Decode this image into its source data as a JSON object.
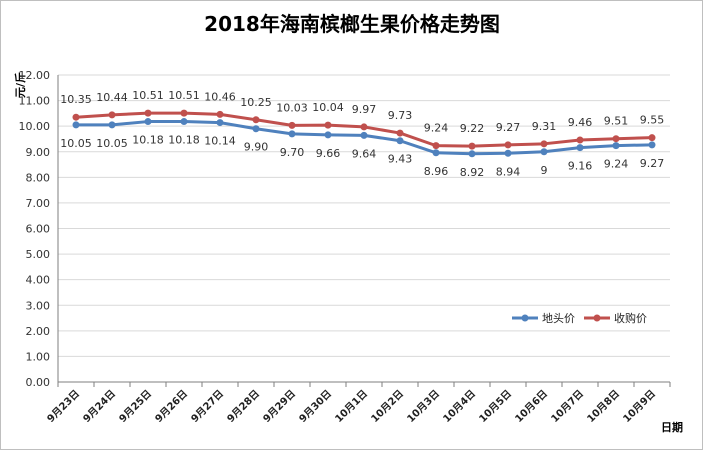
{
  "chart_data": {
    "type": "line",
    "title": "2018年海南槟榔生果价格走势图",
    "xlabel": "日期",
    "ylabel": "元/斤",
    "categories": [
      "9月23日",
      "9月24日",
      "9月25日",
      "9月26日",
      "9月27日",
      "9月28日",
      "9月29日",
      "9月30日",
      "10月1日",
      "10月2日",
      "10月3日",
      "10月4日",
      "10月5日",
      "10月6日",
      "10月7日",
      "10月8日",
      "10月9日"
    ],
    "ylim": [
      0,
      12
    ],
    "ytick_labels": [
      "0.00",
      "1.00",
      "2.00",
      "3.00",
      "4.00",
      "5.00",
      "6.00",
      "7.00",
      "8.00",
      "9.00",
      "10.00",
      "11.00",
      "12.00"
    ],
    "grid": "horizontal",
    "legend_position": "right-middle",
    "series": [
      {
        "name": "地头价",
        "color": "#4F81BD",
        "values": [
          10.05,
          10.05,
          10.18,
          10.18,
          10.14,
          9.9,
          9.7,
          9.66,
          9.64,
          9.43,
          8.96,
          8.92,
          8.94,
          9,
          9.16,
          9.24,
          9.27
        ],
        "labels": [
          "10.05",
          "10.05",
          "10.18",
          "10.18",
          "10.14",
          "9.90",
          "9.70",
          "9.66",
          "9.64",
          "9.43",
          "8.96",
          "8.92",
          "8.94",
          "9",
          "9.16",
          "9.24",
          "9.27"
        ]
      },
      {
        "name": "收购价",
        "color": "#C0504D",
        "values": [
          10.35,
          10.44,
          10.51,
          10.51,
          10.46,
          10.25,
          10.03,
          10.04,
          9.97,
          9.73,
          9.24,
          9.22,
          9.27,
          9.31,
          9.46,
          9.51,
          9.55
        ],
        "labels": [
          "10.35",
          "10.44",
          "10.51",
          "10.51",
          "10.46",
          "10.25",
          "10.03",
          "10.04",
          "9.97",
          "9.73",
          "9.24",
          "9.22",
          "9.27",
          "9.31",
          "9.46",
          "9.51",
          "9.55"
        ]
      }
    ]
  }
}
